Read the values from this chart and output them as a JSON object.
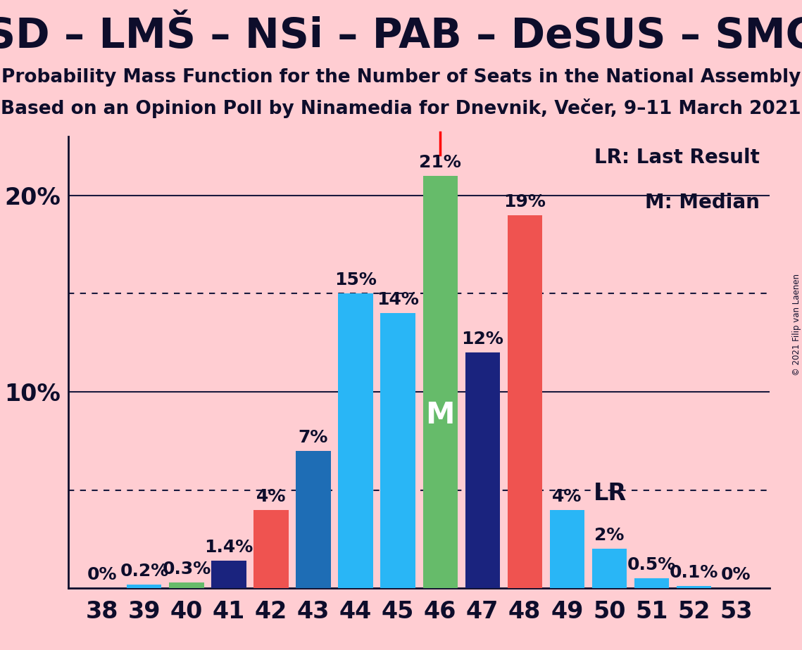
{
  "title": "SD – LMŠ – NSi – PAB – DeSUS – SMC",
  "subtitle1": "Probability Mass Function for the Number of Seats in the National Assembly",
  "subtitle2": "Based on an Opinion Poll by Ninamedia for Dnevnik, Večer, 9–11 March 2021",
  "copyright": "© 2021 Filip van Laenen",
  "background_color": "#FFCDD2",
  "seats": [
    38,
    39,
    40,
    41,
    42,
    43,
    44,
    45,
    46,
    47,
    48,
    49,
    50,
    51,
    52,
    53
  ],
  "values": [
    0.0,
    0.2,
    0.3,
    1.4,
    4.0,
    7.0,
    15.0,
    14.0,
    21.0,
    12.0,
    19.0,
    4.0,
    2.0,
    0.5,
    0.1,
    0.0
  ],
  "bar_colors": [
    "#1E6DB5",
    "#29B6F6",
    "#66BB6A",
    "#1A237E",
    "#EF5350",
    "#1E6DB5",
    "#29B6F6",
    "#29B6F6",
    "#66BB6A",
    "#1A237E",
    "#EF5350",
    "#29B6F6",
    "#29B6F6",
    "#29B6F6",
    "#29B6F6",
    "#1E6DB5"
  ],
  "median_seat": 46,
  "lr_seat": 49,
  "ylim": [
    0,
    23
  ],
  "solid_lines": [
    10.0,
    20.0
  ],
  "dotted_lines": [
    5.0,
    15.0
  ],
  "title_fontsize": 42,
  "subtitle_fontsize": 19,
  "tick_fontsize": 24,
  "bar_label_fontsize": 18,
  "legend_fontsize": 20,
  "lr_fontsize": 24,
  "m_fontsize": 30
}
